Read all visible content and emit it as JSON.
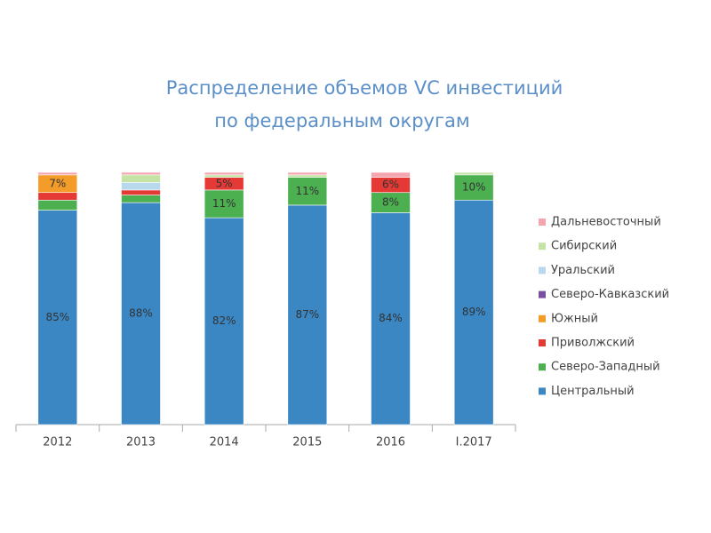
{
  "chart_data": {
    "type": "stacked-bar",
    "title": [
      "Распределение объемов VC инвестиций",
      "по федеральным округам"
    ],
    "categories": [
      "2012",
      "2013",
      "2014",
      "2015",
      "2016",
      "I.2017"
    ],
    "ylim": [
      0,
      100
    ],
    "series": [
      {
        "name": "Центральный",
        "color": "#3a87c4",
        "values": [
          85,
          88,
          82,
          87,
          84,
          89
        ],
        "value_labels": [
          "85%",
          "88%",
          "82%",
          "87%",
          "84%",
          "89%"
        ]
      },
      {
        "name": "Северо-Западный",
        "color": "#4caf50",
        "values": [
          4,
          3,
          11,
          11,
          8,
          10
        ],
        "value_labels": [
          null,
          null,
          "11%",
          "11%",
          "8%",
          "10%"
        ]
      },
      {
        "name": "Приволжский",
        "color": "#e53935",
        "values": [
          3,
          2,
          5,
          0,
          6,
          0
        ],
        "value_labels": [
          null,
          null,
          "5%",
          null,
          "6%",
          null
        ]
      },
      {
        "name": "Южный",
        "color": "#f39c2a",
        "values": [
          7,
          0,
          0,
          0,
          0,
          0
        ],
        "value_labels": [
          "7%",
          null,
          null,
          null,
          null,
          null
        ]
      },
      {
        "name": "Северо-Кавказский",
        "color": "#7b4fa0",
        "values": [
          0,
          0,
          0,
          0,
          0,
          0
        ]
      },
      {
        "name": "Уральский",
        "color": "#b8d8ee",
        "values": [
          0,
          3,
          0,
          0,
          0,
          0
        ]
      },
      {
        "name": "Сибирский",
        "color": "#c5e3a5",
        "values": [
          0,
          3,
          1,
          1,
          0,
          1
        ]
      },
      {
        "name": "Дальневосточный",
        "color": "#f4a6b0",
        "values": [
          1,
          1,
          1,
          1,
          2,
          0
        ]
      }
    ]
  }
}
